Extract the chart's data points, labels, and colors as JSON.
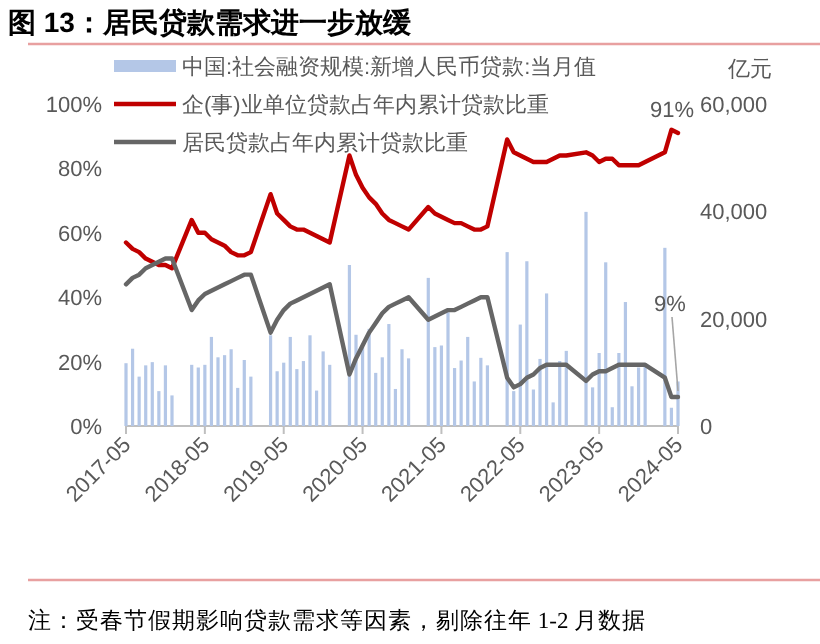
{
  "chart_data": {
    "type": "bar",
    "title": "图 13：居民贷款需求进一步放缓",
    "y2label": "亿元",
    "x": [
      "2017-05",
      "2017-06",
      "2017-07",
      "2017-08",
      "2017-09",
      "2017-10",
      "2017-11",
      "2017-12",
      "2018-03",
      "2018-04",
      "2018-05",
      "2018-06",
      "2018-07",
      "2018-08",
      "2018-09",
      "2018-10",
      "2018-11",
      "2018-12",
      "2019-03",
      "2019-04",
      "2019-05",
      "2019-06",
      "2019-07",
      "2019-08",
      "2019-09",
      "2019-10",
      "2019-11",
      "2019-12",
      "2020-03",
      "2020-04",
      "2020-05",
      "2020-06",
      "2020-07",
      "2020-08",
      "2020-09",
      "2020-10",
      "2020-11",
      "2020-12",
      "2021-03",
      "2021-04",
      "2021-05",
      "2021-06",
      "2021-07",
      "2021-08",
      "2021-09",
      "2021-10",
      "2021-11",
      "2021-12",
      "2022-03",
      "2022-04",
      "2022-05",
      "2022-06",
      "2022-07",
      "2022-08",
      "2022-09",
      "2022-10",
      "2022-11",
      "2022-12",
      "2023-03",
      "2023-04",
      "2023-05",
      "2023-06",
      "2023-07",
      "2023-08",
      "2023-09",
      "2023-10",
      "2023-11",
      "2023-12",
      "2024-03",
      "2024-04",
      "2024-05"
    ],
    "series": [
      {
        "name": "中国:社会融资规模:新增人民币贷款:当月值",
        "axis": "y2",
        "color": "#b4c7e7",
        "values": [
          11700,
          14400,
          9200,
          11300,
          11900,
          6500,
          11300,
          5700,
          11400,
          10900,
          11400,
          16600,
          12800,
          13200,
          14300,
          7100,
          12300,
          9200,
          16900,
          10200,
          11800,
          16600,
          10600,
          12100,
          16900,
          6600,
          13900,
          11400,
          30000,
          17000,
          14800,
          18100,
          9900,
          12800,
          19000,
          6900,
          14300,
          12600,
          27600,
          14700,
          15000,
          21200,
          10800,
          12200,
          16600,
          8300,
          12700,
          11300,
          32400,
          6500,
          18900,
          30700,
          6800,
          12500,
          24700,
          4400,
          12100,
          14000,
          39900,
          7200,
          13600,
          30500,
          3500,
          13600,
          23100,
          7400,
          10900,
          11700,
          33200,
          3400,
          8300
        ]
      },
      {
        "name": "企(事)业单位贷款占年内累计贷款比重",
        "type": "line",
        "color": "#c00000",
        "values": [
          57,
          55,
          54,
          52,
          51,
          50,
          50,
          49,
          64,
          60,
          60,
          58,
          57,
          56,
          54,
          53,
          53,
          54,
          72,
          66,
          64,
          62,
          61,
          61,
          60,
          59,
          58,
          57,
          84,
          78,
          74,
          71,
          69,
          66,
          64,
          63,
          62,
          61,
          68,
          66,
          65,
          64,
          63,
          63,
          62,
          61,
          61,
          62,
          89,
          85,
          84,
          83,
          82,
          82,
          82,
          83,
          84,
          84,
          85,
          84,
          82,
          83,
          83,
          81,
          81,
          81,
          81,
          82,
          85,
          92,
          91
        ]
      },
      {
        "name": "居民贷款占年内累计贷款比重",
        "type": "line",
        "color": "#666666",
        "values": [
          44,
          46,
          47,
          49,
          50,
          51,
          52,
          52,
          36,
          39,
          41,
          42,
          43,
          44,
          45,
          46,
          47,
          47,
          29,
          33,
          36,
          38,
          39,
          40,
          41,
          42,
          43,
          44,
          16,
          21,
          25,
          29,
          32,
          35,
          37,
          38,
          39,
          40,
          33,
          34,
          35,
          36,
          36,
          37,
          38,
          39,
          40,
          40,
          15,
          12,
          13,
          15,
          16,
          18,
          19,
          19,
          19,
          19,
          14,
          16,
          17,
          17,
          18,
          19,
          19,
          19,
          19,
          19,
          15,
          9,
          9
        ]
      }
    ],
    "xlim": [
      "2017-05",
      "2024-05"
    ],
    "xticks": [
      "2017-05",
      "2018-05",
      "2019-05",
      "2020-05",
      "2021-05",
      "2022-05",
      "2023-05",
      "2024-05"
    ],
    "ylim": [
      0,
      100
    ],
    "yticks": [
      {
        "value": 0,
        "label": "0%"
      },
      {
        "value": 20,
        "label": "20%"
      },
      {
        "value": 40,
        "label": "40%"
      },
      {
        "value": 60,
        "label": "60%"
      },
      {
        "value": 80,
        "label": "80%"
      },
      {
        "value": 100,
        "label": "100%"
      }
    ],
    "y2lim": [
      0,
      60000
    ],
    "y2ticks": [
      {
        "value": 0,
        "label": "0"
      },
      {
        "value": 20000,
        "label": "20,000"
      },
      {
        "value": 40000,
        "label": "40,000"
      },
      {
        "value": 60000,
        "label": "60,000"
      }
    ],
    "legend": "top left",
    "grid": false,
    "annotations": [
      {
        "text": "91%",
        "x": "2024-05",
        "y": 91
      },
      {
        "text": "9%",
        "x": "2024-05",
        "y": 9
      },
      "注：受春节假期影响贷款需求等因素，剔除往年 1-2 月数据"
    ]
  }
}
